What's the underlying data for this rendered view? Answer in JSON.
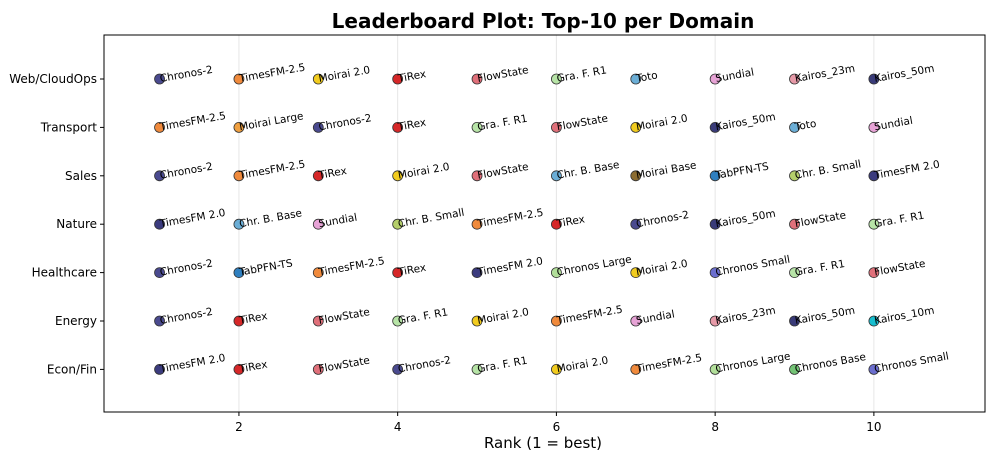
{
  "chart_data": {
    "type": "scatter",
    "title": "Leaderboard Plot: Top-10 per Domain",
    "xlabel": "Rank (1 = best)",
    "ylabel": "",
    "xlim": [
      0.3,
      11.4
    ],
    "xticks": [
      2,
      4,
      6,
      8,
      10
    ],
    "grid": "vertical",
    "domains": [
      "Web/CloudOps",
      "Transport",
      "Sales",
      "Nature",
      "Healthcare",
      "Energy",
      "Econ/Fin"
    ],
    "colors": {
      "Chronos-2": "#4a4a8f",
      "TimesFM-2.5": "#f08a3c",
      "TimesFM 2.0": "#3b3b7e",
      "Moirai 2.0": "#f2cc1f",
      "Moirai Large": "#f0a040",
      "Moirai Base": "#8c6d31",
      "TiRex": "#d62728",
      "FlowState": "#e0707a",
      "Gra. F. R1": "#b7e4a7",
      "Toto": "#6baed6",
      "Sundial": "#e7a3d6",
      "Kairos_23m": "#e79aa8",
      "Kairos_50m": "#393b79",
      "Kairos_10m": "#17becf",
      "Chr. B. Base": "#6baed6",
      "Chr. B. Small": "#b5cf6b",
      "TabPFN-TS": "#2f7fbf",
      "Chronos Large": "#b2df9a",
      "Chronos Base": "#74c476",
      "Chronos Small": "#6b6ecf"
    },
    "series": [
      {
        "domain": "Web/CloudOps",
        "models": [
          "Chronos-2",
          "TimesFM-2.5",
          "Moirai 2.0",
          "TiRex",
          "FlowState",
          "Gra. F. R1",
          "Toto",
          "Sundial",
          "Kairos_23m",
          "Kairos_50m"
        ]
      },
      {
        "domain": "Transport",
        "models": [
          "TimesFM-2.5",
          "Moirai Large",
          "Chronos-2",
          "TiRex",
          "Gra. F. R1",
          "FlowState",
          "Moirai 2.0",
          "Kairos_50m",
          "Toto",
          "Sundial"
        ]
      },
      {
        "domain": "Sales",
        "models": [
          "Chronos-2",
          "TimesFM-2.5",
          "TiRex",
          "Moirai 2.0",
          "FlowState",
          "Chr. B. Base",
          "Moirai Base",
          "TabPFN-TS",
          "Chr. B. Small",
          "TimesFM 2.0"
        ]
      },
      {
        "domain": "Nature",
        "models": [
          "TimesFM 2.0",
          "Chr. B. Base",
          "Sundial",
          "Chr. B. Small",
          "TimesFM-2.5",
          "TiRex",
          "Chronos-2",
          "Kairos_50m",
          "FlowState",
          "Gra. F. R1"
        ]
      },
      {
        "domain": "Healthcare",
        "models": [
          "Chronos-2",
          "TabPFN-TS",
          "TimesFM-2.5",
          "TiRex",
          "TimesFM 2.0",
          "Chronos Large",
          "Moirai 2.0",
          "Chronos Small",
          "Gra. F. R1",
          "FlowState"
        ]
      },
      {
        "domain": "Energy",
        "models": [
          "Chronos-2",
          "TiRex",
          "FlowState",
          "Gra. F. R1",
          "Moirai 2.0",
          "TimesFM-2.5",
          "Sundial",
          "Kairos_23m",
          "Kairos_50m",
          "Kairos_10m"
        ]
      },
      {
        "domain": "Econ/Fin",
        "models": [
          "TimesFM 2.0",
          "TiRex",
          "FlowState",
          "Chronos-2",
          "Gra. F. R1",
          "Moirai 2.0",
          "TimesFM-2.5",
          "Chronos Large",
          "Chronos Base",
          "Chronos Small"
        ]
      }
    ]
  }
}
